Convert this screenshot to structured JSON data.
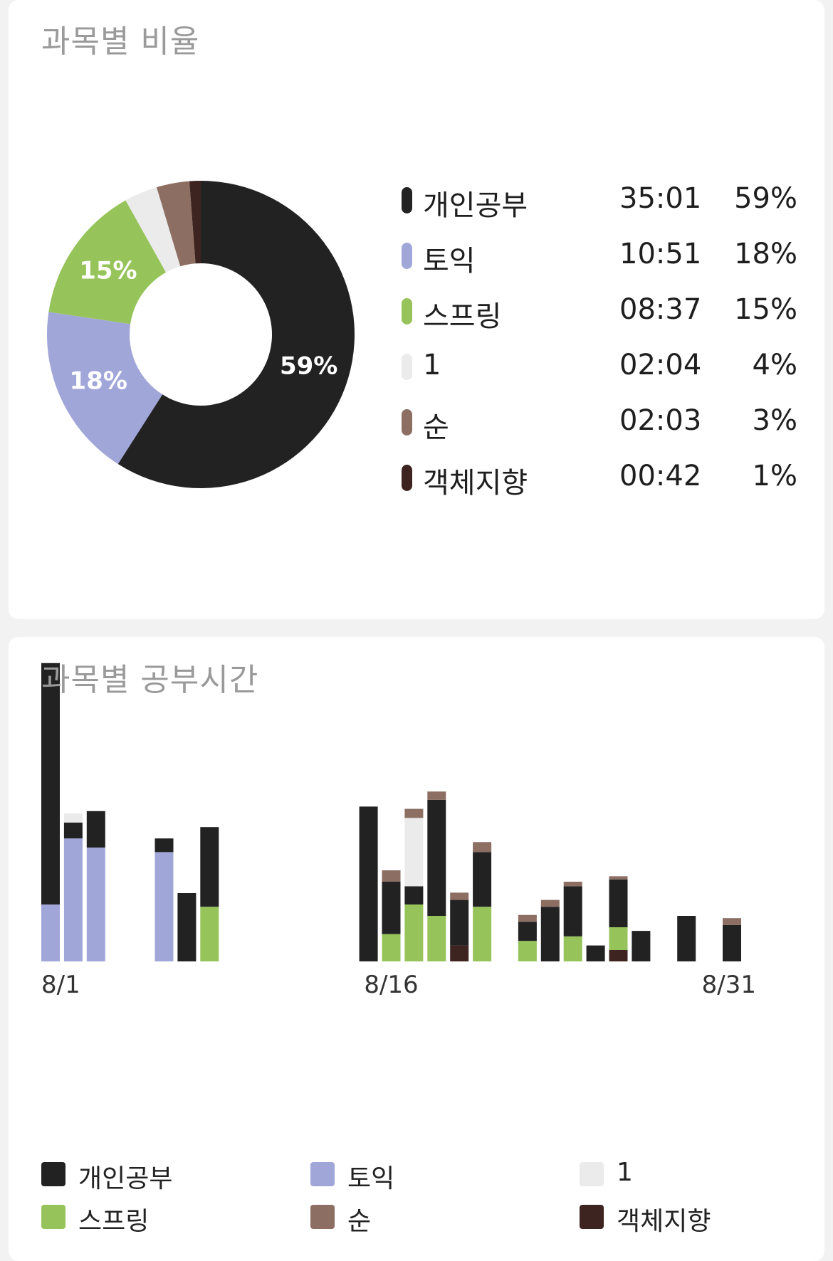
{
  "ratio_card": {
    "title": "과목별 비율"
  },
  "time_card": {
    "title": "과목별 공부시간"
  },
  "subjects": [
    {
      "name": "개인공부",
      "time": "35:01",
      "percent": "59%",
      "color": "#222222"
    },
    {
      "name": "토익",
      "time": "10:51",
      "percent": "18%",
      "color": "#a1a6d9"
    },
    {
      "name": "스프링",
      "time": "08:37",
      "percent": "15%",
      "color": "#96c45a"
    },
    {
      "name": "1",
      "time": "02:04",
      "percent": "4%",
      "color": "#ebebeb"
    },
    {
      "name": "순",
      "time": "02:03",
      "percent": "3%",
      "color": "#8c6e62"
    },
    {
      "name": "객체지향",
      "time": "00:42",
      "percent": "1%",
      "color": "#3d2420"
    }
  ],
  "chart_data": [
    {
      "type": "pie",
      "variant": "donut",
      "labels": [
        "개인공부",
        "토익",
        "스프링",
        "1",
        "순",
        "객체지향"
      ],
      "values": [
        35.02,
        10.85,
        8.62,
        2.07,
        2.05,
        0.7
      ],
      "slice_labels": [
        "59%",
        "18%",
        "15%",
        "",
        "",
        ""
      ],
      "colors": [
        "#222222",
        "#a1a6d9",
        "#96c45a",
        "#ebebeb",
        "#8c6e62",
        "#3d2420"
      ]
    },
    {
      "type": "bar",
      "stacked": true,
      "x_tick_labels": [
        "8/1",
        "8/16",
        "8/31"
      ],
      "days": [
        1,
        2,
        3,
        4,
        5,
        6,
        7,
        8,
        9,
        10,
        11,
        12,
        13,
        14,
        15,
        16,
        17,
        18,
        19,
        20,
        21,
        22,
        23,
        24,
        25,
        26,
        27,
        28,
        29,
        30,
        31
      ],
      "series": [
        {
          "name": "객체지향",
          "color": "#3d2420",
          "values": [
            0,
            0,
            0,
            0,
            0,
            0,
            0,
            0,
            0,
            0,
            0,
            0,
            0,
            0,
            0,
            0,
            0,
            0,
            0.35,
            0,
            0,
            0,
            0,
            0,
            0,
            0.25,
            0,
            0,
            0,
            0,
            0
          ]
        },
        {
          "name": "스프링",
          "color": "#96c45a",
          "values": [
            0,
            0,
            0,
            0,
            0,
            0,
            0,
            1.2,
            0,
            0,
            0,
            0,
            0,
            0,
            0,
            0.6,
            1.25,
            1.0,
            0,
            1.2,
            0,
            0.45,
            0,
            0.55,
            0,
            0.5,
            0,
            0,
            0,
            0,
            0
          ]
        },
        {
          "name": "토익",
          "color": "#a1a6d9",
          "values": [
            1.25,
            2.7,
            2.5,
            0,
            0,
            2.4,
            0,
            0,
            0,
            0,
            0,
            0,
            0,
            0,
            0,
            0,
            0,
            0,
            0,
            0,
            0,
            0,
            0,
            0,
            0,
            0,
            0,
            0,
            0,
            0,
            0
          ]
        },
        {
          "name": "개인공부",
          "color": "#222222",
          "values": [
            5.3,
            0.35,
            0.8,
            0,
            0,
            0.3,
            1.5,
            1.75,
            0,
            0,
            0,
            0,
            0,
            0,
            3.4,
            1.15,
            0.4,
            2.55,
            1.0,
            1.2,
            0,
            0.42,
            1.2,
            1.1,
            0.35,
            1.05,
            0.67,
            0,
            1.0,
            0,
            0.8
          ]
        },
        {
          "name": "1",
          "color": "#ebebeb",
          "values": [
            0,
            0.2,
            0,
            0,
            0,
            0,
            0,
            0,
            0,
            0,
            0,
            0,
            0,
            0,
            0,
            0,
            1.5,
            0,
            0,
            0,
            0,
            0,
            0,
            0,
            0,
            0,
            0,
            0,
            0,
            0,
            0
          ]
        },
        {
          "name": "순",
          "color": "#8c6e62",
          "values": [
            0,
            0,
            0,
            0,
            0,
            0,
            0,
            0,
            0,
            0,
            0,
            0,
            0,
            0,
            0,
            0.25,
            0.2,
            0.18,
            0.16,
            0.22,
            0,
            0.15,
            0.15,
            0.1,
            0,
            0.07,
            0,
            0,
            0,
            0,
            0.15
          ]
        }
      ]
    }
  ]
}
